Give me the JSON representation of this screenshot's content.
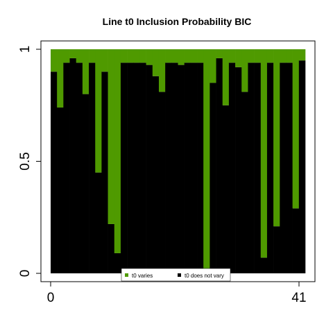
{
  "chart_data": {
    "type": "bar",
    "stacked": true,
    "title": "Line t0 Inclusion Probability BIC",
    "xlabel": "",
    "ylabel": "",
    "xlim": [
      0,
      41
    ],
    "ylim": [
      0,
      1
    ],
    "x_ticks": [
      "0",
      "41"
    ],
    "y_ticks": [
      "0",
      "0.5",
      "1"
    ],
    "grid": false,
    "legend_position": "bottom-center",
    "colors": {
      "varies": "#4f9a00",
      "not_varies": "#000000"
    },
    "legend": [
      "t0 varies",
      "t0 does not vary"
    ],
    "x": [
      1,
      2,
      3,
      4,
      5,
      6,
      7,
      8,
      9,
      10,
      11,
      12,
      13,
      14,
      15,
      16,
      17,
      18,
      19,
      20,
      21,
      22,
      23,
      24,
      25,
      26,
      27,
      28,
      29,
      30,
      31,
      32,
      33,
      34,
      35,
      36,
      37,
      38,
      39,
      40
    ],
    "series": [
      {
        "name": "t0 does not vary",
        "values": [
          0.9,
          0.74,
          0.94,
          0.96,
          0.94,
          0.8,
          0.94,
          0.45,
          0.9,
          0.22,
          0.09,
          0.94,
          0.94,
          0.94,
          0.94,
          0.93,
          0.88,
          0.81,
          0.94,
          0.94,
          0.93,
          0.94,
          0.94,
          0.94,
          0.02,
          0.85,
          0.96,
          0.75,
          0.94,
          0.92,
          0.81,
          0.94,
          0.94,
          0.07,
          0.94,
          0.21,
          0.94,
          0.94,
          0.29,
          0.95
        ]
      },
      {
        "name": "t0 varies",
        "values": [
          0.1,
          0.26,
          0.06,
          0.04,
          0.06,
          0.2,
          0.06,
          0.55,
          0.1,
          0.78,
          0.91,
          0.06,
          0.06,
          0.06,
          0.06,
          0.07,
          0.12,
          0.19,
          0.06,
          0.06,
          0.07,
          0.06,
          0.06,
          0.06,
          0.98,
          0.15,
          0.04,
          0.25,
          0.06,
          0.08,
          0.19,
          0.06,
          0.06,
          0.93,
          0.06,
          0.79,
          0.06,
          0.06,
          0.71,
          0.05
        ]
      }
    ]
  }
}
